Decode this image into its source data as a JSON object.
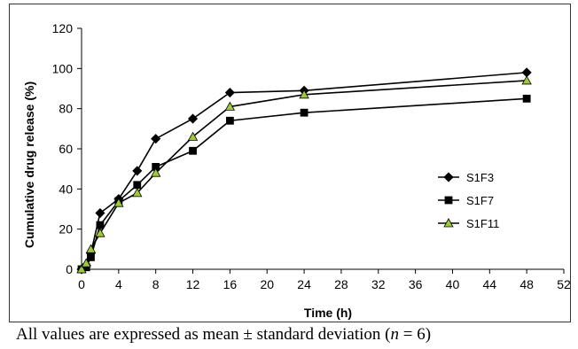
{
  "chart_data": {
    "type": "line",
    "title": "",
    "xlabel": "Time (h)",
    "ylabel": "Cumulative drug release (%)",
    "xlim": [
      0,
      52
    ],
    "ylim": [
      0,
      120
    ],
    "xticks": [
      0,
      4,
      8,
      12,
      16,
      20,
      24,
      28,
      32,
      36,
      40,
      44,
      48,
      52
    ],
    "yticks": [
      0,
      20,
      40,
      60,
      80,
      100,
      120
    ],
    "grid": false,
    "legend_position": "right",
    "series": [
      {
        "name": "S1F3",
        "marker": "diamond",
        "color": "#000000",
        "x": [
          0,
          0.5,
          1,
          2,
          4,
          6,
          8,
          12,
          16,
          24,
          48
        ],
        "y": [
          0,
          2,
          8,
          28,
          35,
          49,
          65,
          75,
          88,
          89,
          98
        ]
      },
      {
        "name": "S1F7",
        "marker": "square",
        "color": "#000000",
        "x": [
          0,
          0.5,
          1,
          2,
          4,
          6,
          8,
          12,
          16,
          24,
          48
        ],
        "y": [
          0,
          1,
          6,
          22,
          34,
          42,
          51,
          59,
          74,
          78,
          85
        ]
      },
      {
        "name": "S1F11",
        "marker": "triangle",
        "color": "#000000",
        "markerFill": "#9acd32",
        "x": [
          0,
          0.5,
          1,
          2,
          4,
          6,
          8,
          12,
          16,
          24,
          48
        ],
        "y": [
          0,
          3,
          10,
          18,
          33,
          38,
          48,
          66,
          81,
          87,
          94
        ]
      }
    ]
  },
  "caption": {
    "prefix": "All values are expressed as mean ± standard deviation (",
    "n_symbol": "n",
    "suffix": " = 6)"
  }
}
